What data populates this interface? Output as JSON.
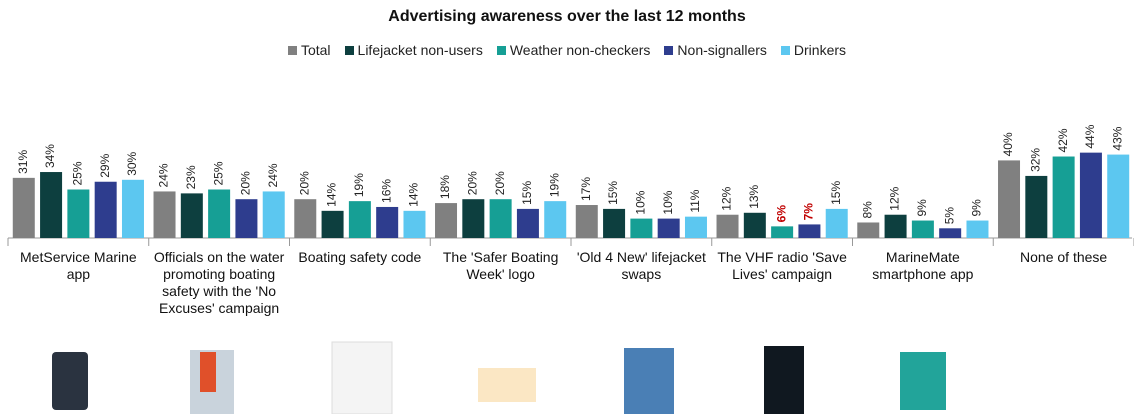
{
  "chart_data": {
    "type": "bar",
    "title": "Advertising awareness over the last 12 months",
    "categories": [
      "MetService Marine app",
      "Officials on the water promoting boating safety with the 'No Excuses' campaign",
      "Boating safety code",
      "The 'Safer Boating Week' logo",
      "'Old 4 New' lifejacket swaps",
      "The VHF radio 'Save Lives' campaign",
      "MarineMate smartphone app",
      "None of these"
    ],
    "series": [
      {
        "name": "Total",
        "color": "#808080",
        "values": [
          31,
          24,
          20,
          18,
          17,
          12,
          8,
          40
        ],
        "value_labels": [
          "31%",
          "24%",
          "20%",
          "18%",
          "17%",
          "12%",
          "8%",
          "40%"
        ]
      },
      {
        "name": "Lifejacket non-users",
        "color": "#0d3f3f",
        "values": [
          34,
          23,
          14,
          20,
          15,
          13,
          12,
          32
        ],
        "value_labels": [
          "34%",
          "23%",
          "14%",
          "20%",
          "15%",
          "13%",
          "12%",
          "32%"
        ]
      },
      {
        "name": "Weather non-checkers",
        "color": "#169f95",
        "values": [
          25,
          25,
          19,
          20,
          10,
          6,
          9,
          42
        ],
        "value_labels": [
          "25%",
          "25%",
          "19%",
          "20%",
          "10%",
          "6%",
          "9%",
          "42%"
        ]
      },
      {
        "name": "Non-signallers",
        "color": "#2e3d8e",
        "values": [
          29,
          20,
          16,
          15,
          10,
          7,
          5,
          44
        ],
        "value_labels": [
          "29%",
          "20%",
          "16%",
          "15%",
          "10%",
          "7%",
          "5%",
          "44%"
        ]
      },
      {
        "name": "Drinkers",
        "color": "#5cc7f0",
        "values": [
          30,
          24,
          14,
          19,
          11,
          15,
          9,
          43
        ],
        "value_labels": [
          "30%",
          "24%",
          "14%",
          "19%",
          "11%",
          "15%",
          "9%",
          "43%"
        ]
      }
    ],
    "ylim": [
      0,
      50
    ],
    "highlight_color": "#c00000",
    "highlighted": [
      {
        "series": 2,
        "index": 5
      },
      {
        "series": 3,
        "index": 5
      }
    ]
  }
}
